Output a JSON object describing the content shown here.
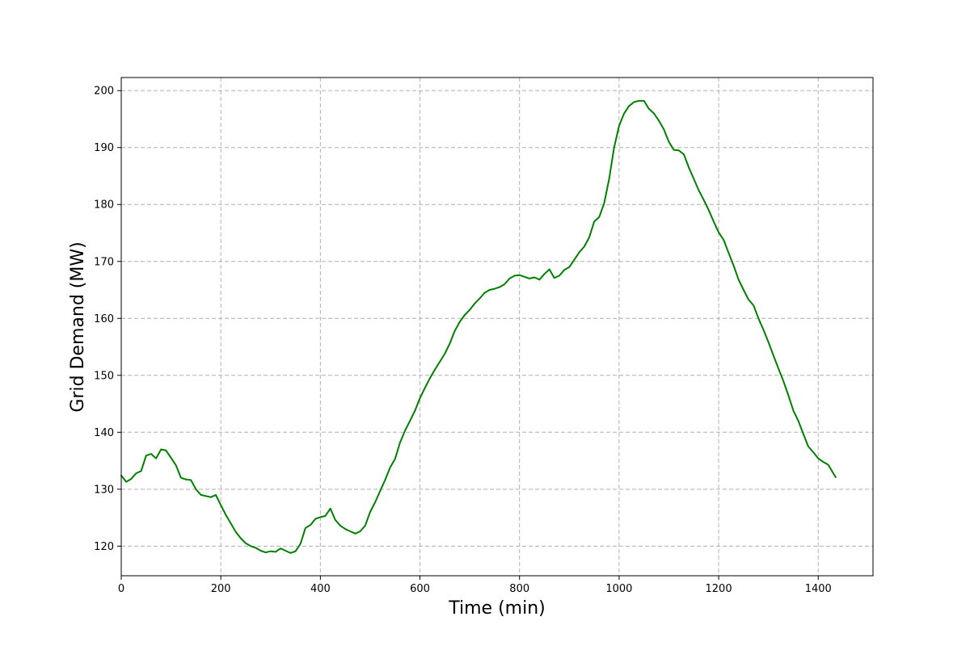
{
  "chart_data": {
    "type": "line",
    "xlabel": "Time (min)",
    "ylabel": "Grid Demand (MW)",
    "xlim": [
      0,
      1510
    ],
    "ylim": [
      114.8,
      202.3
    ],
    "xticks": [
      0,
      200,
      400,
      600,
      800,
      1000,
      1200,
      1400
    ],
    "yticks": [
      120,
      130,
      140,
      150,
      160,
      170,
      180,
      190,
      200
    ],
    "grid": true,
    "grid_style": "dashed",
    "legend": "none",
    "series": [
      {
        "color": "#008000",
        "x": [
          0,
          10,
          20,
          30,
          40,
          50,
          60,
          70,
          80,
          90,
          100,
          110,
          120,
          130,
          140,
          150,
          160,
          170,
          180,
          190,
          200,
          210,
          220,
          230,
          240,
          250,
          260,
          270,
          280,
          290,
          300,
          310,
          320,
          330,
          340,
          350,
          360,
          370,
          380,
          390,
          400,
          410,
          420,
          430,
          440,
          450,
          460,
          470,
          480,
          490,
          500,
          510,
          520,
          530,
          540,
          550,
          560,
          570,
          580,
          590,
          600,
          610,
          620,
          630,
          640,
          650,
          660,
          670,
          680,
          690,
          700,
          710,
          720,
          730,
          740,
          750,
          760,
          770,
          780,
          790,
          800,
          810,
          820,
          830,
          840,
          850,
          860,
          870,
          880,
          890,
          900,
          910,
          920,
          930,
          940,
          950,
          960,
          970,
          980,
          990,
          1000,
          1010,
          1020,
          1030,
          1040,
          1050,
          1060,
          1070,
          1080,
          1090,
          1100,
          1110,
          1120,
          1130,
          1140,
          1150,
          1160,
          1170,
          1180,
          1190,
          1200,
          1210,
          1220,
          1230,
          1240,
          1250,
          1260,
          1270,
          1280,
          1290,
          1300,
          1310,
          1320,
          1330,
          1340,
          1350,
          1360,
          1370,
          1380,
          1390,
          1400,
          1410,
          1420,
          1435
        ],
        "y": [
          132.4,
          131.3,
          131.8,
          132.8,
          133.2,
          135.9,
          136.2,
          135.4,
          137.0,
          136.8,
          135.5,
          134.2,
          132.0,
          131.7,
          131.6,
          130.0,
          129.0,
          128.8,
          128.6,
          129.0,
          127.2,
          125.5,
          124.0,
          122.5,
          121.4,
          120.5,
          120.0,
          119.7,
          119.2,
          118.9,
          119.1,
          119.0,
          119.6,
          119.2,
          118.8,
          119.1,
          120.4,
          123.2,
          123.7,
          124.8,
          125.1,
          125.3,
          126.6,
          124.6,
          123.6,
          123.0,
          122.6,
          122.2,
          122.6,
          123.6,
          126.0,
          127.7,
          129.7,
          131.6,
          133.8,
          135.3,
          138.2,
          140.3,
          142.0,
          143.8,
          146.0,
          147.8,
          149.5,
          151.0,
          152.4,
          153.8,
          155.6,
          157.8,
          159.4,
          160.6,
          161.5,
          162.6,
          163.5,
          164.5,
          165.0,
          165.2,
          165.5,
          166.0,
          167.0,
          167.5,
          167.6,
          167.3,
          167.0,
          167.2,
          166.8,
          167.8,
          168.6,
          167.1,
          167.5,
          168.5,
          169.0,
          170.3,
          171.6,
          172.6,
          174.2,
          177.0,
          177.8,
          180.2,
          184.5,
          190.0,
          193.8,
          196.0,
          197.3,
          198.0,
          198.2,
          198.2,
          196.8,
          196.0,
          194.7,
          193.2,
          191.0,
          189.6,
          189.5,
          188.8,
          186.5,
          184.5,
          182.5,
          180.8,
          179.0,
          177.0,
          175.1,
          173.8,
          171.5,
          169.3,
          166.8,
          165.0,
          163.3,
          162.3,
          160.0,
          158.0,
          155.8,
          153.5,
          151.2,
          149.0,
          146.5,
          143.8,
          142.0,
          139.7,
          137.5,
          136.5,
          135.4,
          134.8,
          134.3,
          132.1
        ]
      }
    ]
  }
}
